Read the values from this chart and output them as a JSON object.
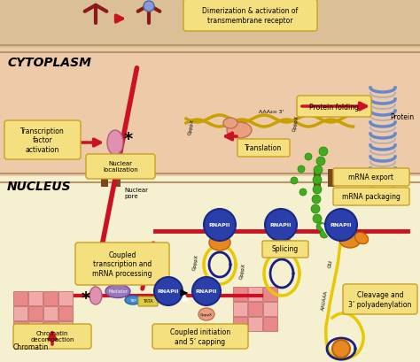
{
  "bg_top_membrane": "#dbbf96",
  "bg_cytoplasm": "#eecba8",
  "bg_nucleus": "#f5f0d0",
  "membrane_line": "#b8956a",
  "nucleus_line": "#b8956a",
  "red": "#cc1122",
  "dark_red": "#8b1a1a",
  "label_fc": "#f5e080",
  "label_ec": "#c8a020",
  "rnapii_fc": "#2b3faa",
  "rnapii_ec": "#1a2888",
  "orange": "#e88820",
  "yellow_rna": "#e8c800",
  "green": "#44aa22",
  "navy": "#1a2080",
  "blue_helix": "#6688cc",
  "pink_tf": "#e090b0",
  "mediator_fc": "#9977bb",
  "chromatin_a": "#e88888",
  "chromatin_b": "#f0aaaa",
  "salmon": "#e8a080",
  "labels": {
    "dimerization": "Dimerization & activation of\ntransmembrane receptor",
    "cytoplasm": "CYTOPLASM",
    "nucleus": "NUCLEUS",
    "tf": "Transcription\nfactor\nactivation",
    "nuclear_loc": "Nuclear\nlocalization",
    "nuclear_pore": "Nuclear\npore",
    "translation": "Translation",
    "protein_folding": "Protein folding",
    "protein": "Protein",
    "mrna_export": "mRNA export",
    "mrna_packaging": "mRNA packaging",
    "coupled_tx": "Coupled\ntranscription and\nmRNA processing",
    "splicing": "Splicing",
    "cleavage": "Cleavage and\n3’ polyadenylation",
    "coupled_init": "Coupled initiation\nand 5’ capping",
    "chromatin_decomp": "Chromatin\ndecompaction",
    "chromatin": "Chromatin",
    "rnapii": "RNAPII"
  }
}
